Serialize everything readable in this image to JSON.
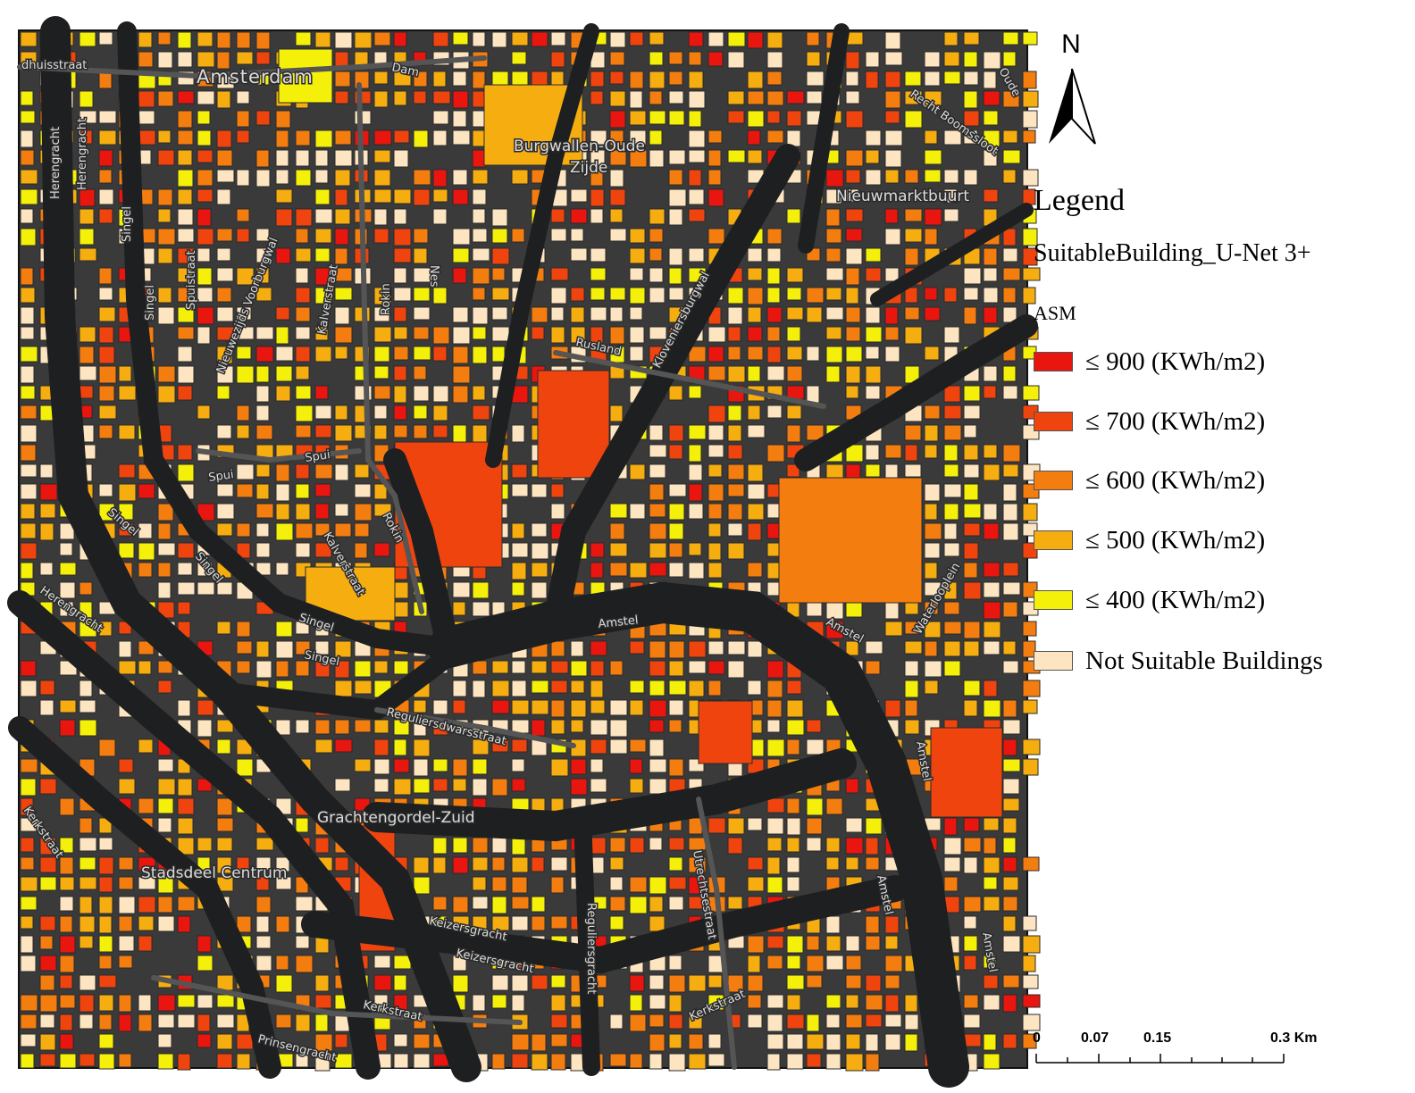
{
  "map": {
    "place_labels": [
      {
        "id": "amsterdam",
        "text": "Amsterdam"
      },
      {
        "id": "burgwallen",
        "text": "Burgwallen-Oude"
      },
      {
        "id": "zijde",
        "text": "Zijde"
      },
      {
        "id": "nieuwmarkt",
        "text": "Nieuwmarktbuurt"
      },
      {
        "id": "grachtengordel",
        "text": "Grachtengordel-Zuid"
      },
      {
        "id": "stadsdeel",
        "text": "Stadsdeel Centrum"
      }
    ],
    "street_labels": [
      {
        "id": "dhuisstraat",
        "text": "dhuisstraat"
      },
      {
        "id": "dam",
        "text": "Dam"
      },
      {
        "id": "herengracht1",
        "text": "Herengracht"
      },
      {
        "id": "herengracht2",
        "text": "Herengracht"
      },
      {
        "id": "singel1",
        "text": "Singel"
      },
      {
        "id": "singel2",
        "text": "Singel"
      },
      {
        "id": "spuistraat",
        "text": "Spuistraat"
      },
      {
        "id": "nieuwezijds",
        "text": "Nieuwezijds Voorburgwal"
      },
      {
        "id": "kalverstraat1",
        "text": "Kalverstraat"
      },
      {
        "id": "rokin1",
        "text": "Rokin"
      },
      {
        "id": "nes",
        "text": "Nes"
      },
      {
        "id": "rusland",
        "text": "Rusland"
      },
      {
        "id": "kloveniersburgwal",
        "text": "Kloveniersburgwal"
      },
      {
        "id": "recht-boomssloot",
        "text": "Recht Boomssloot"
      },
      {
        "id": "oude",
        "text": "Oude"
      },
      {
        "id": "spui1",
        "text": "Spui"
      },
      {
        "id": "spui2",
        "text": "Spui"
      },
      {
        "id": "rokin2",
        "text": "Rokin"
      },
      {
        "id": "kalverstraat2",
        "text": "Kalverstraat"
      },
      {
        "id": "singel3",
        "text": "Singel"
      },
      {
        "id": "singel4",
        "text": "Singel"
      },
      {
        "id": "singel5",
        "text": "Singel"
      },
      {
        "id": "singel6",
        "text": "Singel"
      },
      {
        "id": "herengracht3",
        "text": "Herengracht"
      },
      {
        "id": "amstel1",
        "text": "Amstel"
      },
      {
        "id": "amstel2",
        "text": "Amstel"
      },
      {
        "id": "waterlooplein",
        "text": "Waterlooplein"
      },
      {
        "id": "reguliersdwarsstraat",
        "text": "Reguliersdwarsstraat"
      },
      {
        "id": "keizersgracht1",
        "text": "Keizersgracht"
      },
      {
        "id": "keizersgracht2",
        "text": "Keizersgracht"
      },
      {
        "id": "reguliersgracht",
        "text": "Reguliersgracht"
      },
      {
        "id": "utrechtsestraat",
        "text": "Utrechtsestraat"
      },
      {
        "id": "kerkstraat1",
        "text": "Kerkstraat"
      },
      {
        "id": "kerkstraat2",
        "text": "Kerkstraat"
      },
      {
        "id": "kerkstraat3",
        "text": "Kerkstraat"
      },
      {
        "id": "prinsengracht",
        "text": "Prinsengracht"
      },
      {
        "id": "amstel3",
        "text": "Amstel"
      },
      {
        "id": "amstel4",
        "text": "Amstel"
      },
      {
        "id": "amstel5",
        "text": "Amstel"
      }
    ]
  },
  "north_arrow": {
    "letter": "N"
  },
  "legend": {
    "title": "Legend",
    "layer": "SuitableBuilding_U-Net 3+",
    "field": "ASM",
    "items": [
      {
        "label": "≤ 900 (KWh/m2)",
        "color": "#e8160f"
      },
      {
        "label": "≤ 700 (KWh/m2)",
        "color": "#f0440f"
      },
      {
        "label": "≤ 600 (KWh/m2)",
        "color": "#f47d10"
      },
      {
        "label": "≤ 500 (KWh/m2)",
        "color": "#f5ad10"
      },
      {
        "label": "≤ 400 (KWh/m2)",
        "color": "#f5f00a"
      },
      {
        "label": "Not Suitable Buildings",
        "color": "#fde5c2"
      }
    ]
  },
  "scale_bar": {
    "ticks": [
      "0",
      "0.07",
      "0.15",
      "0.3 Km"
    ]
  }
}
